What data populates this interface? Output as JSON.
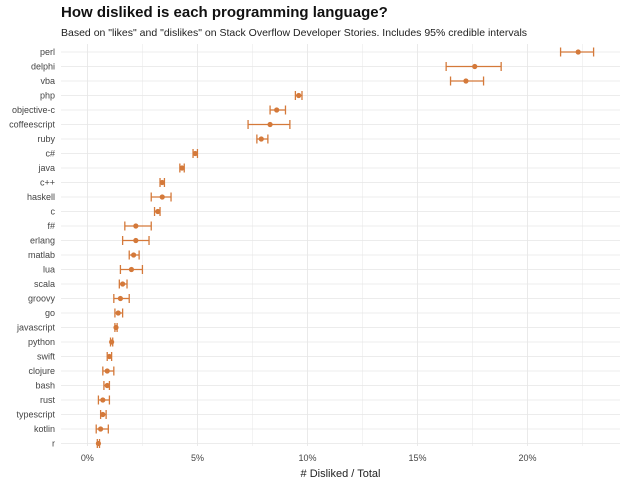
{
  "chart_data": {
    "type": "scatter",
    "title": "How disliked is each programming language?",
    "subtitle": "Based on \"likes\" and \"dislikes\" on Stack Overflow Developer Stories. Includes 95% credible intervals",
    "xlabel": "# Disliked / Total",
    "ylabel": "",
    "xlim": [
      -1.2,
      24.2
    ],
    "xticks": [
      0,
      5,
      10,
      15,
      20
    ],
    "xtick_labels": [
      "0%",
      "5%",
      "10%",
      "15%",
      "20%"
    ],
    "grid": true,
    "color": "#d4793a",
    "series": [
      {
        "language": "perl",
        "estimate": 22.3,
        "low": 21.5,
        "high": 23.0
      },
      {
        "language": "delphi",
        "estimate": 17.6,
        "low": 16.3,
        "high": 18.8
      },
      {
        "language": "vba",
        "estimate": 17.2,
        "low": 16.5,
        "high": 18.0
      },
      {
        "language": "php",
        "estimate": 9.6,
        "low": 9.45,
        "high": 9.75
      },
      {
        "language": "objective-c",
        "estimate": 8.6,
        "low": 8.3,
        "high": 9.0
      },
      {
        "language": "coffeescript",
        "estimate": 8.3,
        "low": 7.3,
        "high": 9.2
      },
      {
        "language": "ruby",
        "estimate": 7.9,
        "low": 7.7,
        "high": 8.2
      },
      {
        "language": "c#",
        "estimate": 4.9,
        "low": 4.8,
        "high": 5.0
      },
      {
        "language": "java",
        "estimate": 4.3,
        "low": 4.2,
        "high": 4.4
      },
      {
        "language": "c++",
        "estimate": 3.4,
        "low": 3.3,
        "high": 3.5
      },
      {
        "language": "haskell",
        "estimate": 3.4,
        "low": 2.9,
        "high": 3.8
      },
      {
        "language": "c",
        "estimate": 3.2,
        "low": 3.05,
        "high": 3.3
      },
      {
        "language": "f#",
        "estimate": 2.2,
        "low": 1.7,
        "high": 2.9
      },
      {
        "language": "erlang",
        "estimate": 2.2,
        "low": 1.6,
        "high": 2.8
      },
      {
        "language": "matlab",
        "estimate": 2.1,
        "low": 1.9,
        "high": 2.35
      },
      {
        "language": "lua",
        "estimate": 2.0,
        "low": 1.5,
        "high": 2.5
      },
      {
        "language": "scala",
        "estimate": 1.6,
        "low": 1.45,
        "high": 1.8
      },
      {
        "language": "groovy",
        "estimate": 1.5,
        "low": 1.2,
        "high": 1.9
      },
      {
        "language": "go",
        "estimate": 1.4,
        "low": 1.25,
        "high": 1.6
      },
      {
        "language": "javascript",
        "estimate": 1.3,
        "low": 1.25,
        "high": 1.35
      },
      {
        "language": "python",
        "estimate": 1.1,
        "low": 1.05,
        "high": 1.15
      },
      {
        "language": "swift",
        "estimate": 1.0,
        "low": 0.9,
        "high": 1.1
      },
      {
        "language": "clojure",
        "estimate": 0.9,
        "low": 0.7,
        "high": 1.2
      },
      {
        "language": "bash",
        "estimate": 0.9,
        "low": 0.75,
        "high": 1.0
      },
      {
        "language": "rust",
        "estimate": 0.7,
        "low": 0.5,
        "high": 1.0
      },
      {
        "language": "typescript",
        "estimate": 0.7,
        "low": 0.6,
        "high": 0.85
      },
      {
        "language": "kotlin",
        "estimate": 0.6,
        "low": 0.4,
        "high": 0.95
      },
      {
        "language": "r",
        "estimate": 0.5,
        "low": 0.45,
        "high": 0.55
      }
    ]
  }
}
